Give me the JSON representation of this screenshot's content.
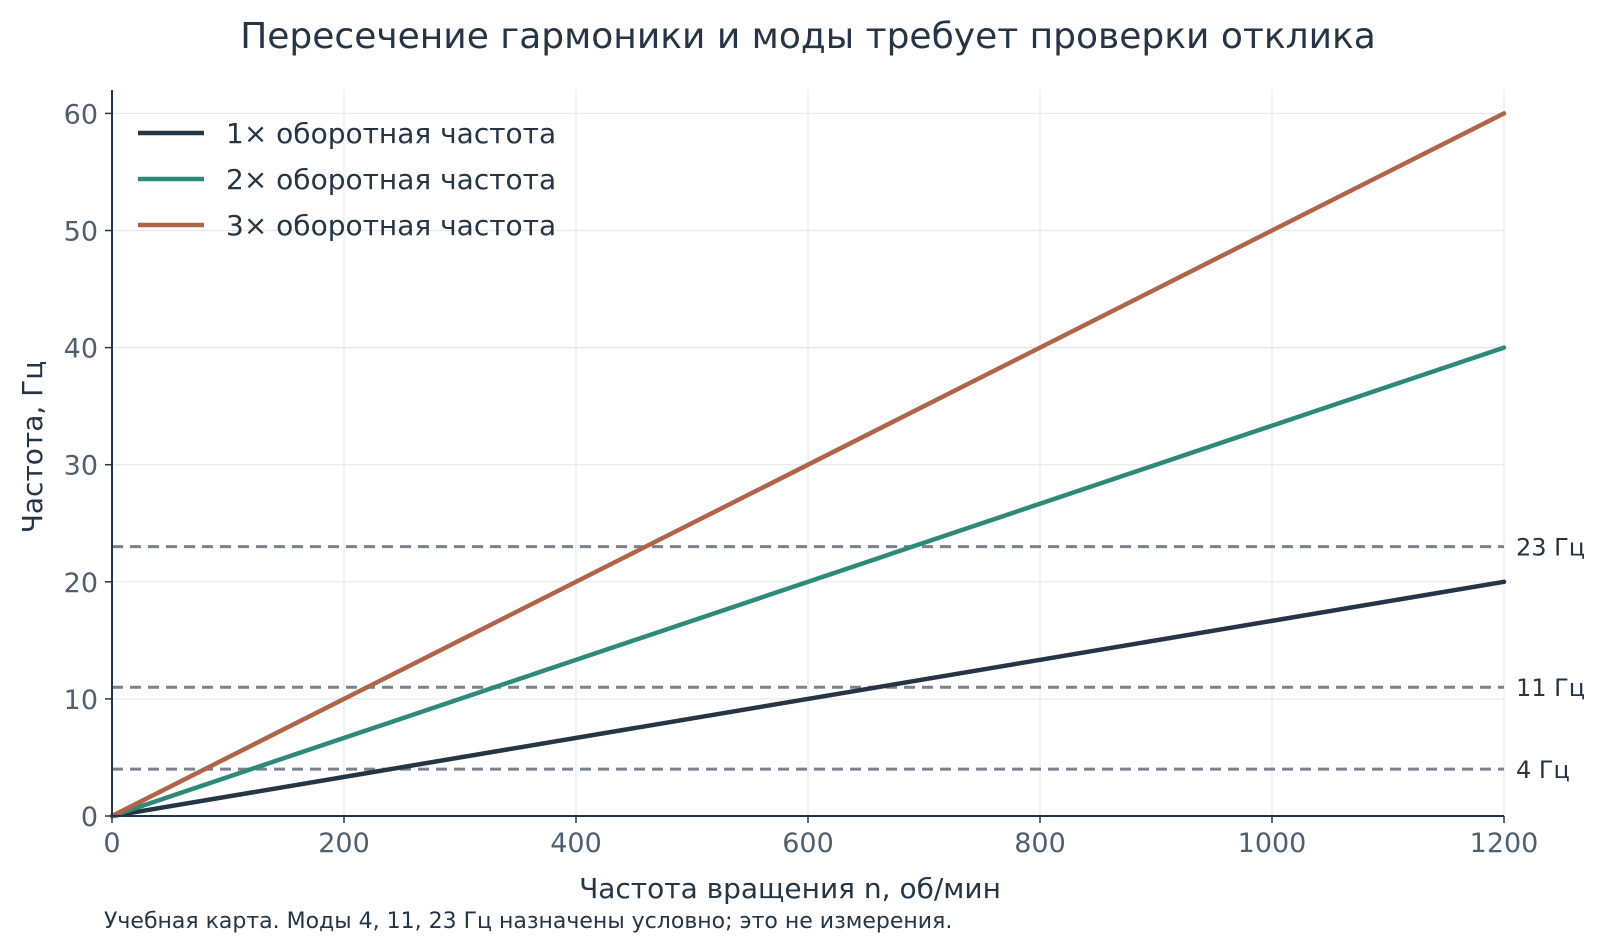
{
  "chart_data": {
    "type": "line",
    "title": "Пересечение гармоники и моды требует проверки отклика",
    "xlabel": "Частота вращения n, об/мин",
    "ylabel": "Частота, Гц",
    "xlim": [
      0,
      1200
    ],
    "ylim": [
      0,
      62
    ],
    "xticks": [
      0,
      200,
      400,
      600,
      800,
      1000,
      1200
    ],
    "yticks": [
      0,
      10,
      20,
      30,
      40,
      50,
      60
    ],
    "grid": true,
    "legend_position": "top-left",
    "x": [
      0,
      1200
    ],
    "series": [
      {
        "name": "1× оборотная частота",
        "values": [
          0,
          20
        ],
        "color": "#253545"
      },
      {
        "name": "2× оборотная частота",
        "values": [
          0,
          40
        ],
        "color": "#2e8a78"
      },
      {
        "name": "3× оборотная частота",
        "values": [
          0,
          60
        ],
        "color": "#b0654a"
      }
    ],
    "reference_lines": [
      {
        "value": 4,
        "label": "4 Гц"
      },
      {
        "value": 11,
        "label": "11 Гц"
      },
      {
        "value": 23,
        "label": "23 Гц"
      }
    ],
    "reference_color": "#7b828c",
    "note": "Учебная карта. Моды 4, 11, 23 Гц назначены условно; это не измерения."
  }
}
